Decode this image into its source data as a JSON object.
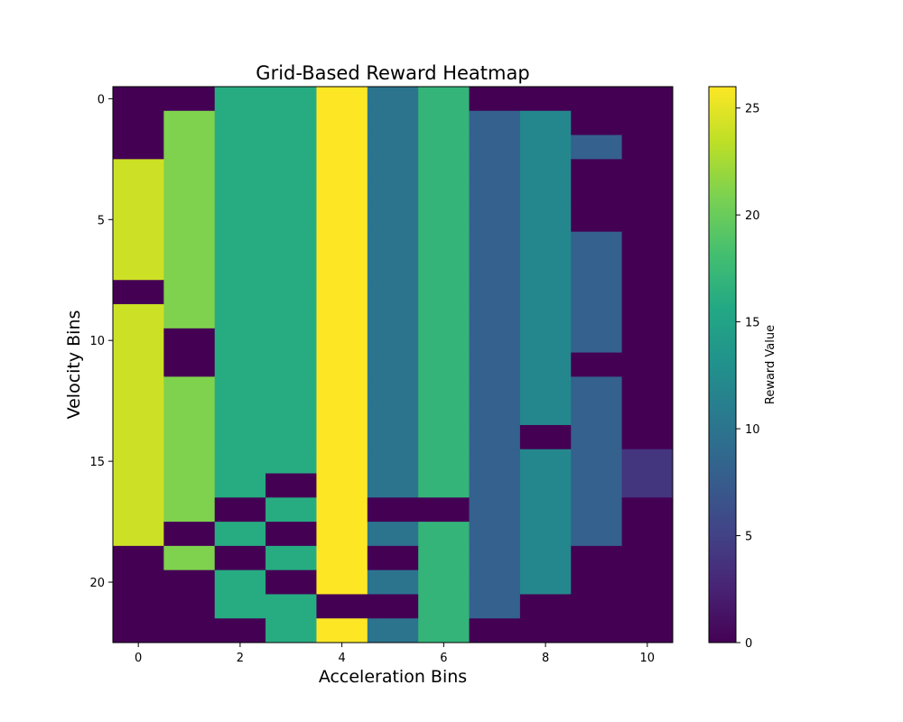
{
  "chart_data": {
    "type": "heatmap",
    "title": "Grid-Based Reward Heatmap",
    "xlabel": "Acceleration Bins",
    "ylabel": "Velocity Bins",
    "colorbar_label": "Reward Value",
    "colormap": "viridis",
    "vmin": 0,
    "vmax": 26,
    "x_ticks": [
      0,
      2,
      4,
      6,
      8,
      10
    ],
    "y_ticks": [
      0,
      5,
      10,
      15,
      20
    ],
    "colorbar_ticks": [
      0,
      5,
      10,
      15,
      20,
      25
    ],
    "n_rows": 23,
    "n_cols": 11,
    "values": [
      [
        0,
        0,
        16,
        16,
        26,
        10,
        17,
        0,
        0,
        0,
        0
      ],
      [
        0,
        21,
        16,
        16,
        26,
        10,
        17,
        8,
        12,
        0,
        0
      ],
      [
        0,
        21,
        16,
        16,
        26,
        10,
        17,
        8,
        12,
        8,
        0
      ],
      [
        24,
        21,
        16,
        16,
        26,
        10,
        17,
        8,
        12,
        0,
        0
      ],
      [
        24,
        21,
        16,
        16,
        26,
        10,
        17,
        8,
        12,
        0,
        0
      ],
      [
        24,
        21,
        16,
        16,
        26,
        10,
        17,
        8,
        12,
        0,
        0
      ],
      [
        24,
        21,
        16,
        16,
        26,
        10,
        17,
        8,
        12,
        8,
        0
      ],
      [
        24,
        21,
        16,
        16,
        26,
        10,
        17,
        8,
        12,
        8,
        0
      ],
      [
        0,
        21,
        16,
        16,
        26,
        10,
        17,
        8,
        12,
        8,
        0
      ],
      [
        24,
        21,
        16,
        16,
        26,
        10,
        17,
        8,
        12,
        8,
        0
      ],
      [
        24,
        0,
        16,
        16,
        26,
        10,
        17,
        8,
        12,
        8,
        0
      ],
      [
        24,
        0,
        16,
        16,
        26,
        10,
        17,
        8,
        12,
        0,
        0
      ],
      [
        24,
        21,
        16,
        16,
        26,
        10,
        17,
        8,
        12,
        8,
        0
      ],
      [
        24,
        21,
        16,
        16,
        26,
        10,
        17,
        8,
        12,
        8,
        0
      ],
      [
        24,
        21,
        16,
        16,
        26,
        10,
        17,
        8,
        0,
        8,
        0
      ],
      [
        24,
        21,
        16,
        16,
        26,
        10,
        17,
        8,
        12,
        8,
        4
      ],
      [
        24,
        21,
        16,
        0,
        26,
        10,
        17,
        8,
        12,
        8,
        4
      ],
      [
        24,
        21,
        0,
        16,
        26,
        0,
        0,
        8,
        12,
        8,
        0
      ],
      [
        24,
        0,
        16,
        0,
        26,
        10,
        17,
        8,
        12,
        8,
        0
      ],
      [
        0,
        21,
        0,
        16,
        26,
        0,
        17,
        8,
        12,
        0,
        0
      ],
      [
        0,
        0,
        16,
        0,
        26,
        10,
        17,
        8,
        12,
        0,
        0
      ],
      [
        0,
        0,
        16,
        16,
        0,
        0,
        17,
        8,
        0,
        0,
        0
      ],
      [
        0,
        0,
        0,
        16,
        26,
        10,
        17,
        0,
        0,
        0,
        0
      ]
    ]
  }
}
